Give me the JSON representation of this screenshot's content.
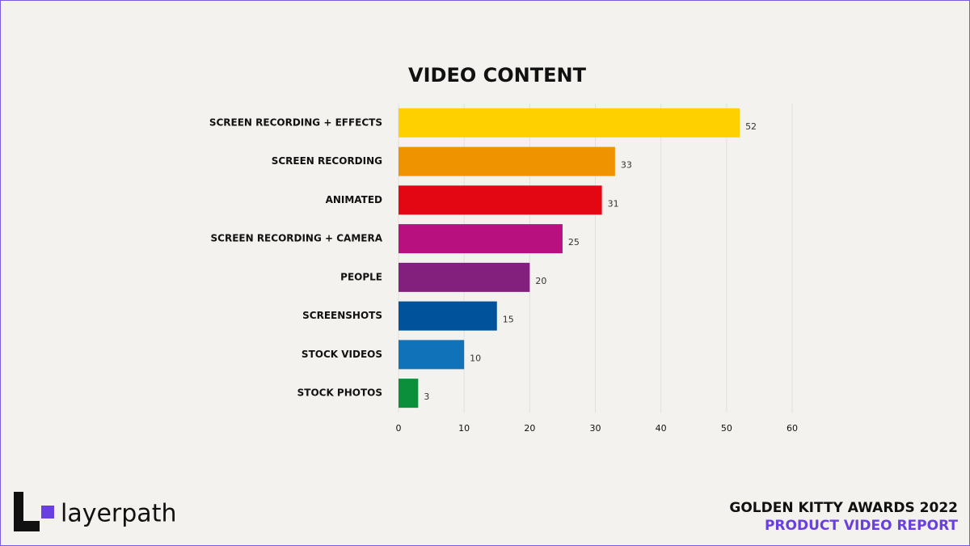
{
  "chart_data": {
    "type": "hbar",
    "title": "VIDEO CONTENT",
    "categories": [
      "SCREEN RECORDING + EFFECTS",
      "SCREEN RECORDING",
      "ANIMATED",
      "SCREEN RECORDING + CAMERA",
      "PEOPLE",
      "SCREENSHOTS",
      "STOCK VIDEOS",
      "STOCK PHOTOS"
    ],
    "values": [
      52,
      33,
      31,
      25,
      20,
      15,
      10,
      3
    ],
    "colors": [
      "#ffd000",
      "#f09300",
      "#e30613",
      "#b8107e",
      "#83207e",
      "#00539b",
      "#1072b8",
      "#0b8f3a"
    ],
    "xlim": [
      0,
      60
    ],
    "xticks": [
      0,
      10,
      20,
      30,
      40,
      50,
      60
    ],
    "grid": true
  },
  "footer": {
    "brand": "layerpath",
    "title": "GOLDEN KITTY AWARDS 2022",
    "subtitle": "PRODUCT VIDEO REPORT"
  }
}
